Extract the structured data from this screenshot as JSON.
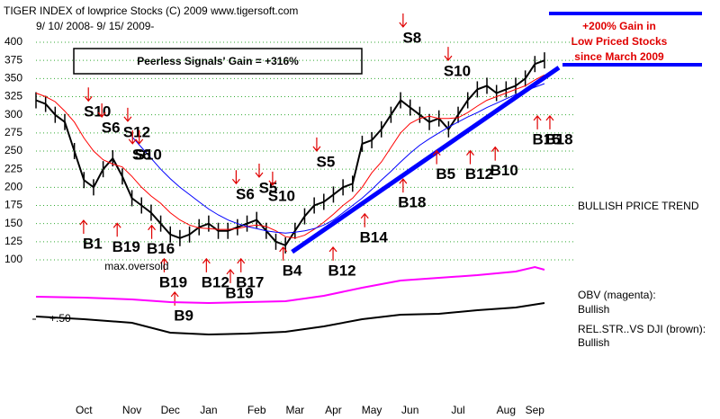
{
  "chart_data": [
    {
      "type": "line",
      "title": "TIGER INDEX of lowprice Stocks  (C) 2009  www.tigersoft.com",
      "subtitle": "9/ 10/ 2008- 9/ 15/ 2009-",
      "gain_box": "Peerless Signals' Gain = +316%",
      "highlight": [
        "+200% Gain in",
        "Low Priced Stocks",
        "since March 2009"
      ],
      "trend_label": "BULLISH PRICE TREND",
      "categories": [
        null,
        null,
        null,
        null,
        null,
        "Oct",
        null,
        null,
        null,
        null,
        "Nov",
        null,
        null,
        null,
        "Dec",
        null,
        null,
        null,
        "Jan",
        null,
        null,
        null,
        null,
        "Feb",
        null,
        null,
        null,
        "Mar",
        null,
        null,
        null,
        "Apr",
        null,
        null,
        null,
        "May",
        null,
        null,
        null,
        "Jun",
        null,
        null,
        null,
        null,
        "Jul",
        null,
        null,
        null,
        null,
        "Aug",
        null,
        null,
        "Sep",
        null
      ],
      "series": [
        {
          "color": "#000000",
          "values": [
            320,
            315,
            300,
            290,
            250,
            210,
            200,
            225,
            240,
            215,
            185,
            175,
            165,
            150,
            135,
            130,
            135,
            145,
            150,
            140,
            140,
            145,
            150,
            155,
            140,
            125,
            120,
            140,
            160,
            175,
            180,
            190,
            200,
            205,
            260,
            265,
            280,
            300,
            320,
            310,
            300,
            290,
            295,
            280,
            300,
            320,
            335,
            340,
            330,
            335,
            340,
            350,
            370,
            375
          ]
        },
        {
          "color": "#ff0000",
          "values": [
            330,
            325,
            318,
            305,
            290,
            268,
            250,
            238,
            232,
            228,
            215,
            200,
            188,
            178,
            165,
            155,
            148,
            144,
            143,
            142,
            142,
            143,
            146,
            148,
            146,
            140,
            132,
            130,
            134,
            142,
            152,
            163,
            175,
            185,
            200,
            220,
            235,
            255,
            275,
            288,
            295,
            298,
            295,
            295,
            296,
            303,
            312,
            320,
            325,
            330,
            335,
            340,
            348,
            355
          ]
        },
        {
          "color": "#0000ff",
          "values": [
            null,
            null,
            null,
            null,
            null,
            null,
            null,
            null,
            null,
            null,
            270,
            255,
            240,
            225,
            212,
            200,
            190,
            180,
            170,
            162,
            155,
            150,
            146,
            143,
            140,
            138,
            137,
            138,
            140,
            143,
            148,
            155,
            165,
            175,
            185,
            197,
            210,
            222,
            235,
            247,
            258,
            267,
            275,
            283,
            290,
            297,
            303,
            310,
            316,
            322,
            328,
            333,
            338,
            343
          ]
        }
      ],
      "trendline": {
        "color": "#0000ff",
        "x": [
          26.7,
          54.5
        ],
        "y": [
          111,
          365
        ]
      },
      "ylim": [
        100,
        400
      ],
      "yticks": [
        100,
        125,
        150,
        175,
        200,
        225,
        250,
        275,
        300,
        325,
        350,
        375,
        400
      ],
      "grid": true,
      "signals": [
        {
          "label": "S10",
          "x": 6.4,
          "y": 303,
          "kind": "sell"
        },
        {
          "label": "S6",
          "x": 7.8,
          "y": 281,
          "kind": "sell"
        },
        {
          "label": "S12",
          "x": 10.5,
          "y": 275,
          "kind": "sell"
        },
        {
          "label": "S6",
          "x": 11,
          "y": 244,
          "kind": "sell"
        },
        {
          "label": "S10",
          "x": 11.7,
          "y": 244,
          "kind": "sell"
        },
        {
          "label": "B1",
          "x": 5.9,
          "y": 121,
          "kind": "buy"
        },
        {
          "label": "B19",
          "x": 9.4,
          "y": 117,
          "kind": "buy"
        },
        {
          "label": "B16",
          "x": 13,
          "y": 114,
          "kind": "buy"
        },
        {
          "label": "B19",
          "x": 14.3,
          "y": 68,
          "kind": "buy"
        },
        {
          "label": "B9",
          "x": 15.4,
          "y": 22,
          "kind": "buy"
        },
        {
          "label": "B12",
          "x": 18.7,
          "y": 68,
          "kind": "buy"
        },
        {
          "label": "B19",
          "x": 21.2,
          "y": 53,
          "kind": "buy"
        },
        {
          "label": "B17",
          "x": 22.3,
          "y": 68,
          "kind": "buy"
        },
        {
          "label": "S6",
          "x": 21.8,
          "y": 189,
          "kind": "sell"
        },
        {
          "label": "S5",
          "x": 24.2,
          "y": 198,
          "kind": "sell"
        },
        {
          "label": "S10",
          "x": 25.6,
          "y": 187,
          "kind": "sell"
        },
        {
          "label": "S5",
          "x": 30.2,
          "y": 234,
          "kind": "sell"
        },
        {
          "label": "B4",
          "x": 26.7,
          "y": 84,
          "kind": "buy"
        },
        {
          "label": "B12",
          "x": 31.9,
          "y": 84,
          "kind": "buy"
        },
        {
          "label": "B14",
          "x": 35.2,
          "y": 130,
          "kind": "buy"
        },
        {
          "label": "B18",
          "x": 39.2,
          "y": 178,
          "kind": "buy"
        },
        {
          "label": "S8",
          "x": 39.2,
          "y": 405,
          "kind": "sell"
        },
        {
          "label": "S10",
          "x": 43.9,
          "y": 359,
          "kind": "sell"
        },
        {
          "label": "B5",
          "x": 42.7,
          "y": 217,
          "kind": "buy"
        },
        {
          "label": "B12",
          "x": 46.2,
          "y": 217,
          "kind": "buy"
        },
        {
          "label": "B10",
          "x": 48.8,
          "y": 222,
          "kind": "buy"
        },
        {
          "label": "B15",
          "x": 53.2,
          "y": 265,
          "kind": "buy"
        },
        {
          "label": "B18",
          "x": 54.5,
          "y": 265,
          "kind": "buy"
        }
      ],
      "annotations": [
        {
          "text": "max.oversold",
          "x": 10.5,
          "y": 90
        }
      ]
    },
    {
      "type": "line",
      "label": "OBV (magenta):",
      "status": "Bullish",
      "x": [
        0,
        5,
        10,
        14,
        18,
        22,
        26,
        30,
        34,
        38,
        42,
        46,
        50,
        52,
        53
      ],
      "series": [
        {
          "color": "#ff00ff",
          "values": [
            20,
            18,
            14,
            8,
            6,
            8,
            10,
            22,
            40,
            56,
            62,
            68,
            76,
            86,
            80
          ]
        }
      ],
      "ylim": [
        -20,
        100
      ]
    },
    {
      "type": "line",
      "label": "REL.STR..VS DJI (brown):",
      "status": "Bullish",
      "x": [
        0,
        5,
        10,
        14,
        18,
        22,
        26,
        30,
        34,
        38,
        42,
        46,
        50,
        53
      ],
      "series": [
        {
          "color": "#000000",
          "values": [
            0.56,
            0.5,
            0.42,
            0.2,
            0.16,
            0.18,
            0.22,
            0.34,
            0.5,
            0.6,
            0.62,
            0.7,
            0.76,
            0.86
          ]
        }
      ],
      "ylim": [
        0,
        1
      ],
      "yticks": [
        {
          "value": 0.5,
          "label": "+.50"
        }
      ]
    }
  ]
}
